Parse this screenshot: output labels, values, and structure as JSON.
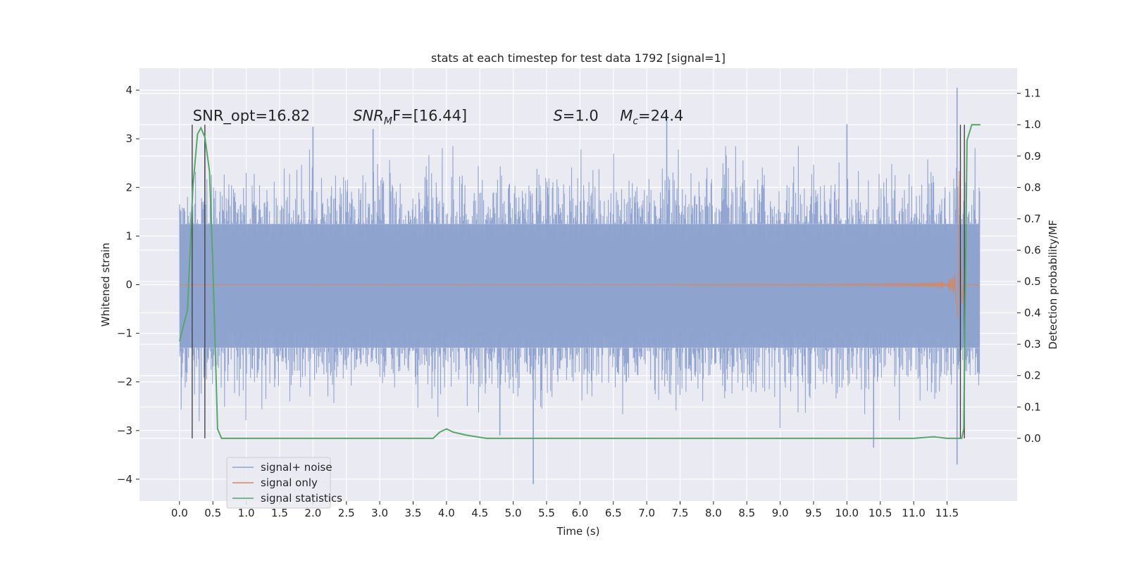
{
  "chart_data": {
    "type": "line",
    "title": "stats at each timestep for test data 1792 [signal=1]",
    "xlabel": "Time (s)",
    "ylabel": "Whitened strain",
    "y2label": "Detection probability/MF",
    "xlim": [
      -0.6,
      12.55
    ],
    "ylim": [
      -4.45,
      4.45
    ],
    "y2lim": [
      -0.2,
      1.18
    ],
    "x_ticks": [
      0.0,
      0.5,
      1.0,
      1.5,
      2.0,
      2.5,
      3.0,
      3.5,
      4.0,
      4.5,
      5.0,
      5.5,
      6.0,
      6.5,
      7.0,
      7.5,
      8.0,
      8.5,
      9.0,
      9.5,
      10.0,
      10.5,
      11.0,
      11.5
    ],
    "x_tick_labels": [
      "0.0",
      "0.5",
      "1.0",
      "1.5",
      "2.0",
      "2.5",
      "3.0",
      "3.5",
      "4.0",
      "4.5",
      "5.0",
      "5.5",
      "6.0",
      "6.5",
      "7.0",
      "7.5",
      "8.0",
      "8.5",
      "9.0",
      "9.5",
      "10.0",
      "10.5",
      "11.0",
      "11.5"
    ],
    "y_ticks": [
      -4,
      -3,
      -2,
      -1,
      0,
      1,
      2,
      3,
      4
    ],
    "y_tick_labels": [
      "−4",
      "−3",
      "−2",
      "−1",
      "0",
      "1",
      "2",
      "3",
      "4"
    ],
    "y2_ticks": [
      0.0,
      0.1,
      0.2,
      0.3,
      0.4,
      0.5,
      0.6,
      0.7,
      0.8,
      0.9,
      1.0,
      1.1
    ],
    "y2_tick_labels": [
      "0.0",
      "0.1",
      "0.2",
      "0.3",
      "0.4",
      "0.5",
      "0.6",
      "0.7",
      "0.8",
      "0.9",
      "1.0",
      "1.1"
    ],
    "grid": true,
    "legend_position": "lower-left",
    "noise": {
      "x_range": [
        0.0,
        11.99
      ],
      "typical_amplitude": 1.3,
      "max": 4.05,
      "min": -4.1,
      "spikes": [
        {
          "x": 0.38,
          "y": 3.0
        },
        {
          "x": 2.0,
          "y": 3.25
        },
        {
          "x": 2.9,
          "y": 3.2
        },
        {
          "x": 7.3,
          "y": 3.5
        },
        {
          "x": 10.0,
          "y": 3.3
        },
        {
          "x": 11.65,
          "y": 4.05
        },
        {
          "x": 5.3,
          "y": -4.1
        },
        {
          "x": 4.8,
          "y": -3.1
        },
        {
          "x": 10.4,
          "y": -3.35
        },
        {
          "x": 11.65,
          "y": -3.7
        }
      ]
    },
    "series": [
      {
        "name": "signal+ noise",
        "color": "#8ea2cf",
        "axis": "left"
      },
      {
        "name": "signal only",
        "color": "#dd8452",
        "axis": "left",
        "chirp_start": 7.5,
        "chirp_peak": 11.68,
        "peak_amplitude": 2.85
      },
      {
        "name": "signal statistics",
        "color": "#55a868",
        "axis": "right",
        "x": [
          0.0,
          0.12,
          0.2,
          0.27,
          0.32,
          0.38,
          0.45,
          0.5,
          0.57,
          0.63,
          1.0,
          2.0,
          3.0,
          3.5,
          3.8,
          3.9,
          4.0,
          4.1,
          4.3,
          4.6,
          5.0,
          6.0,
          7.0,
          8.0,
          9.0,
          9.5,
          10.0,
          10.5,
          11.0,
          11.3,
          11.5,
          11.65,
          11.72,
          11.75,
          11.8,
          11.87,
          11.95,
          12.0
        ],
        "y": [
          0.31,
          0.41,
          0.8,
          0.97,
          0.99,
          0.96,
          0.85,
          0.55,
          0.03,
          0.0,
          0.0,
          0.0,
          0.0,
          0.0,
          0.0,
          0.02,
          0.03,
          0.02,
          0.01,
          0.0,
          0.0,
          0.0,
          0.0,
          0.0,
          0.0,
          0.0,
          0.0,
          0.0,
          0.0,
          0.005,
          0.0,
          0.0,
          0.0,
          0.03,
          0.95,
          1.0,
          1.0,
          1.0
        ]
      }
    ],
    "vlines": [
      0.19,
      0.38,
      11.7,
      11.76
    ],
    "vline_color": "#3a3a3a",
    "annotations": [
      {
        "text": "SNR_opt=16.82",
        "x": 0.2
      },
      {
        "text": "SNRMF=[16.44]",
        "x": 2.6,
        "main": "SNR",
        "sub": "M",
        "tail": "F=[16.44]"
      },
      {
        "text": "S=1.0",
        "x": 5.6,
        "main": "S",
        "tail": "=1.0"
      },
      {
        "text": "Mc=24.4",
        "x": 6.6,
        "main": "M",
        "sub": "c",
        "tail": "=24.4"
      }
    ],
    "annotation_y": 3.2
  }
}
